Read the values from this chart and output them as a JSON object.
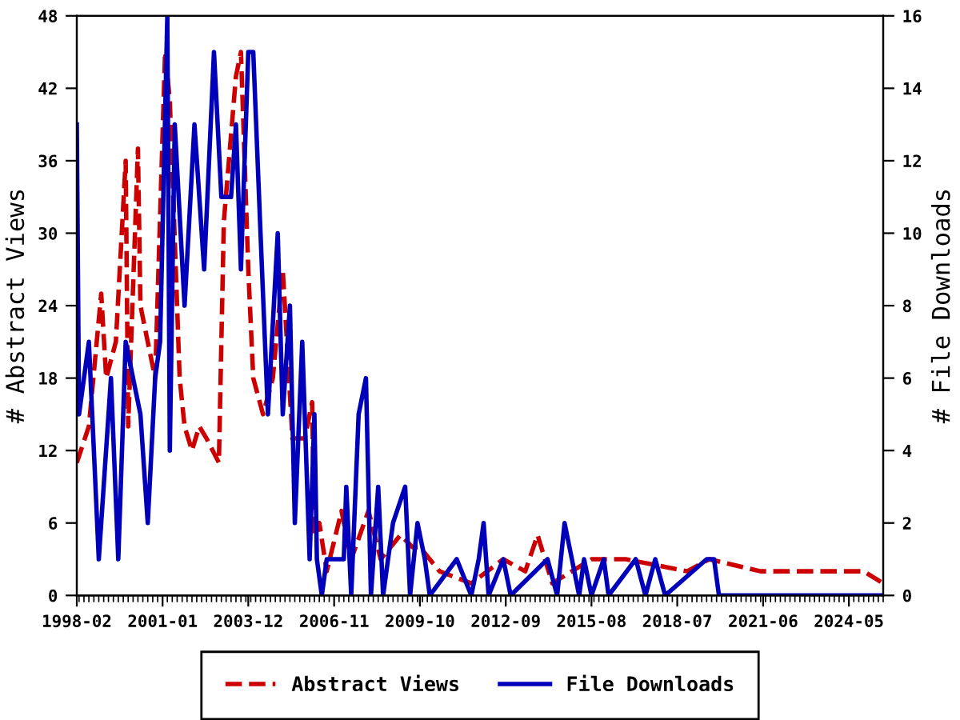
{
  "chart_data": {
    "type": "line",
    "ylabel": "# Abstract Views",
    "y2label": "# File Downloads",
    "xlim": [
      "1998-02",
      "2025-07"
    ],
    "xticks": [
      "1998-02",
      "2001-01",
      "2003-12",
      "2006-11",
      "2009-10",
      "2012-09",
      "2015-08",
      "2018-07",
      "2021-06",
      "2024-05"
    ],
    "ylim": [
      0,
      48
    ],
    "yticks": [
      0,
      6,
      12,
      18,
      24,
      30,
      36,
      42,
      48
    ],
    "y2lim": [
      0,
      16
    ],
    "y2ticks": [
      0,
      2,
      4,
      6,
      8,
      10,
      12,
      14,
      16
    ],
    "legend": "bottom",
    "grid": false,
    "series": [
      {
        "name": "Abstract Views",
        "color": "#cc0000",
        "line_style": "dashed",
        "x": [
          "1998-02",
          "1998-07",
          "1998-12",
          "1999-02",
          "1999-06",
          "1999-10",
          "1999-11",
          "2000-03",
          "2000-04",
          "2000-07",
          "2000-10",
          "2001-02",
          "2001-04",
          "2001-08",
          "2001-10",
          "2002-01",
          "2002-04",
          "2002-07",
          "2002-12",
          "2003-02",
          "2003-07",
          "2003-09",
          "2003-12",
          "2004-02",
          "2004-06",
          "2004-10",
          "2005-02",
          "2005-06",
          "2005-11",
          "2006-02",
          "2006-03",
          "2006-05",
          "2006-08",
          "2007-02",
          "2007-06",
          "2008-01",
          "2008-06",
          "2009-02",
          "2009-07",
          "2009-10",
          "2010-06",
          "2011-07",
          "2012-08",
          "2013-05",
          "2013-10",
          "2014-04",
          "2015-08",
          "2016-10",
          "2018-11",
          "2019-08",
          "2021-05",
          "2024-11",
          "2025-07"
        ],
        "values": [
          11,
          14,
          25,
          18,
          21,
          36,
          14,
          37,
          24,
          21,
          18,
          45,
          41,
          18,
          14,
          12,
          14,
          13,
          11,
          31,
          43,
          45,
          27,
          18,
          15,
          18,
          27,
          13,
          13,
          16,
          5,
          6,
          2,
          7,
          3,
          7,
          3,
          5,
          4,
          4,
          2,
          1,
          3,
          2,
          5,
          1,
          3,
          3,
          2,
          3,
          2,
          2,
          1
        ]
      },
      {
        "name": "File Downloads",
        "color": "#0000bb",
        "line_style": "solid",
        "axis": "y2",
        "x": [
          "1998-02",
          "1998-03",
          "1998-07",
          "1998-09",
          "1998-11",
          "1999-04",
          "1999-07",
          "1999-10",
          "2000-04",
          "2000-07",
          "2000-10",
          "2000-12",
          "2001-03",
          "2001-04",
          "2001-06",
          "2001-10",
          "2002-02",
          "2002-06",
          "2002-10",
          "2003-01",
          "2003-05",
          "2003-07",
          "2003-09",
          "2003-10",
          "2003-12",
          "2004-02",
          "2004-05",
          "2004-08",
          "2004-12",
          "2005-02",
          "2005-05",
          "2005-07",
          "2005-10",
          "2006-01",
          "2006-03",
          "2006-04",
          "2006-06",
          "2006-08",
          "2007-03",
          "2007-04",
          "2007-06",
          "2007-09",
          "2007-12",
          "2008-02",
          "2008-05",
          "2008-07",
          "2008-11",
          "2009-04",
          "2009-06",
          "2009-09",
          "2009-12",
          "2010-02",
          "2011-01",
          "2011-07",
          "2011-10",
          "2011-12",
          "2012-02",
          "2012-08",
          "2012-11",
          "2014-02",
          "2014-06",
          "2014-09",
          "2014-12",
          "2015-03",
          "2015-05",
          "2015-08",
          "2016-01",
          "2016-03",
          "2017-02",
          "2017-06",
          "2017-10",
          "2018-02",
          "2019-07",
          "2019-10",
          "2019-12",
          "2025-07"
        ],
        "values": [
          13,
          5,
          7,
          4,
          1,
          6,
          1,
          7,
          5,
          2,
          6,
          7,
          16,
          4,
          13,
          8,
          13,
          9,
          15,
          11,
          11,
          13,
          9,
          11,
          15,
          15,
          10,
          5,
          10,
          5,
          8,
          2,
          7,
          1,
          5,
          1,
          0,
          1,
          1,
          3,
          0,
          5,
          6,
          0,
          3,
          0,
          2,
          3,
          0,
          2,
          1,
          0,
          1,
          0,
          1,
          2,
          0,
          1,
          0,
          1,
          0,
          2,
          1,
          0,
          1,
          0,
          1,
          0,
          1,
          0,
          1,
          0,
          1,
          1,
          0,
          0
        ]
      }
    ]
  }
}
